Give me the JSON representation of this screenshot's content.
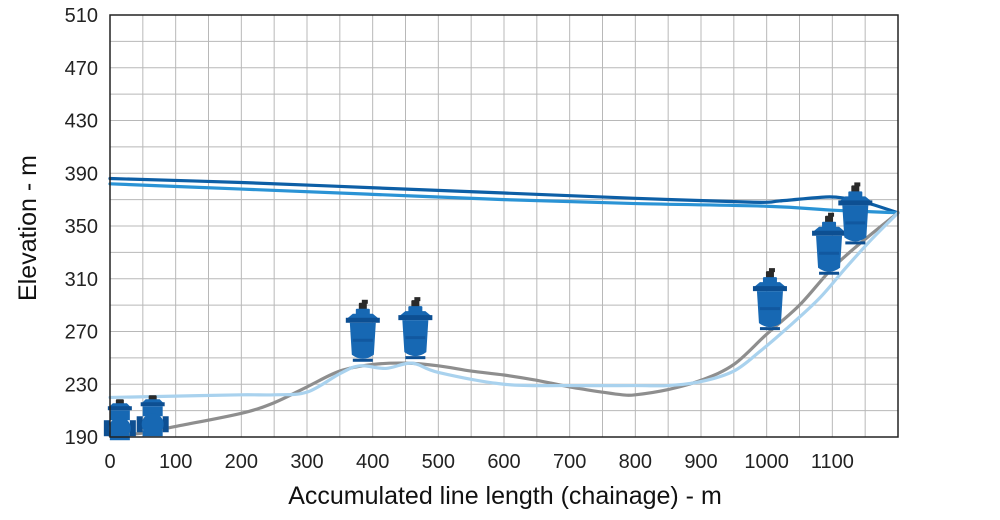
{
  "chart_data": {
    "type": "line",
    "title": "",
    "xlabel": "Accumulated line length (chainage) - m",
    "ylabel": "Elevation - m",
    "xlim": [
      0,
      1200
    ],
    "ylim": [
      190,
      510
    ],
    "x_ticks": [
      0,
      100,
      200,
      300,
      400,
      500,
      600,
      700,
      800,
      900,
      1000,
      1100
    ],
    "y_ticks": [
      190,
      230,
      270,
      310,
      350,
      390,
      430,
      470,
      510
    ],
    "grid": true,
    "series": [
      {
        "color": "#0d5fa6",
        "points": [
          [
            0,
            386
          ],
          [
            200,
            383
          ],
          [
            400,
            379
          ],
          [
            600,
            375
          ],
          [
            800,
            371
          ],
          [
            980,
            368
          ],
          [
            1020,
            369
          ],
          [
            1090,
            372
          ],
          [
            1120,
            371
          ],
          [
            1150,
            368
          ],
          [
            1200,
            360
          ]
        ]
      },
      {
        "color": "#2a93d5",
        "points": [
          [
            0,
            382
          ],
          [
            200,
            378
          ],
          [
            400,
            374
          ],
          [
            600,
            370
          ],
          [
            800,
            367
          ],
          [
            1000,
            365
          ],
          [
            1100,
            362
          ],
          [
            1150,
            361
          ],
          [
            1200,
            360
          ]
        ]
      },
      {
        "color": "#8e8e8e",
        "points": [
          [
            0,
            191
          ],
          [
            50,
            193
          ],
          [
            100,
            198
          ],
          [
            200,
            208
          ],
          [
            250,
            216
          ],
          [
            300,
            228
          ],
          [
            350,
            240
          ],
          [
            400,
            245
          ],
          [
            450,
            246
          ],
          [
            500,
            244
          ],
          [
            550,
            240
          ],
          [
            600,
            237
          ],
          [
            650,
            233
          ],
          [
            700,
            228
          ],
          [
            750,
            224
          ],
          [
            780,
            222
          ],
          [
            800,
            222
          ],
          [
            850,
            226
          ],
          [
            900,
            233
          ],
          [
            950,
            245
          ],
          [
            1000,
            268
          ],
          [
            1050,
            290
          ],
          [
            1100,
            318
          ],
          [
            1150,
            340
          ],
          [
            1200,
            360
          ]
        ]
      },
      {
        "color": "#a9d2ee",
        "points": [
          [
            0,
            220
          ],
          [
            100,
            221
          ],
          [
            200,
            222
          ],
          [
            250,
            222
          ],
          [
            300,
            224
          ],
          [
            350,
            238
          ],
          [
            380,
            244
          ],
          [
            420,
            242
          ],
          [
            460,
            246
          ],
          [
            500,
            239
          ],
          [
            600,
            230
          ],
          [
            700,
            229
          ],
          [
            800,
            229
          ],
          [
            850,
            229
          ],
          [
            900,
            232
          ],
          [
            950,
            240
          ],
          [
            990,
            255
          ],
          [
            1030,
            272
          ],
          [
            1080,
            295
          ],
          [
            1120,
            318
          ],
          [
            1160,
            340
          ],
          [
            1200,
            360
          ]
        ]
      }
    ],
    "valves": [
      {
        "x": 15,
        "y": 205,
        "kind": "inline"
      },
      {
        "x": 65,
        "y": 208,
        "kind": "inline"
      },
      {
        "x": 385,
        "y": 266,
        "kind": "upright"
      },
      {
        "x": 465,
        "y": 268,
        "kind": "upright"
      },
      {
        "x": 1005,
        "y": 290,
        "kind": "upright"
      },
      {
        "x": 1095,
        "y": 332,
        "kind": "upright"
      },
      {
        "x": 1135,
        "y": 355,
        "kind": "upright"
      }
    ],
    "colors": {
      "valve_body": "#1768b3",
      "valve_cap": "#2a2a2a",
      "grid": "#b8b8b8"
    }
  }
}
